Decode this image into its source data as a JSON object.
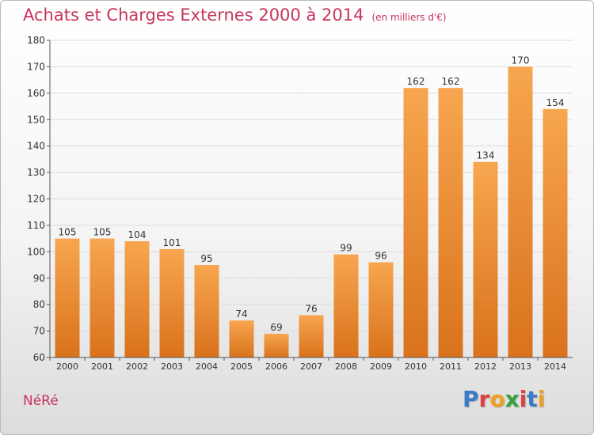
{
  "header": {
    "title": "Achats et Charges Externes 2000 à 2014",
    "subtitle": "(en milliers d'€)"
  },
  "footer": {
    "commune": "NéRé",
    "logo_letters": [
      "P",
      "r",
      "o",
      "x",
      "i",
      "t",
      "i"
    ],
    "logo_colors": [
      "#3a7cc7",
      "#e04040",
      "#f0a020",
      "#3aa040",
      "#e04040",
      "#3a7cc7",
      "#f0a020"
    ]
  },
  "colors": {
    "bar_top": "#f7a64f",
    "bar_bottom": "#d9721c",
    "grid": "#dcdcdc",
    "axis_text": "#333333",
    "title": "#c8345a"
  },
  "chart_data": {
    "type": "bar",
    "title": "Achats et Charges Externes 2000 à 2014",
    "subtitle": "(en milliers d'€)",
    "xlabel": "",
    "ylabel": "",
    "categories": [
      "2000",
      "2001",
      "2002",
      "2003",
      "2004",
      "2005",
      "2006",
      "2007",
      "2008",
      "2009",
      "2010",
      "2011",
      "2012",
      "2013",
      "2014"
    ],
    "values": [
      105,
      105,
      104,
      101,
      95,
      74,
      69,
      76,
      99,
      96,
      162,
      162,
      134,
      170,
      154
    ],
    "ylim": [
      60,
      180
    ],
    "yticks": [
      60,
      70,
      80,
      90,
      100,
      110,
      120,
      130,
      140,
      150,
      160,
      170,
      180
    ],
    "grid": true,
    "data_labels": true
  }
}
